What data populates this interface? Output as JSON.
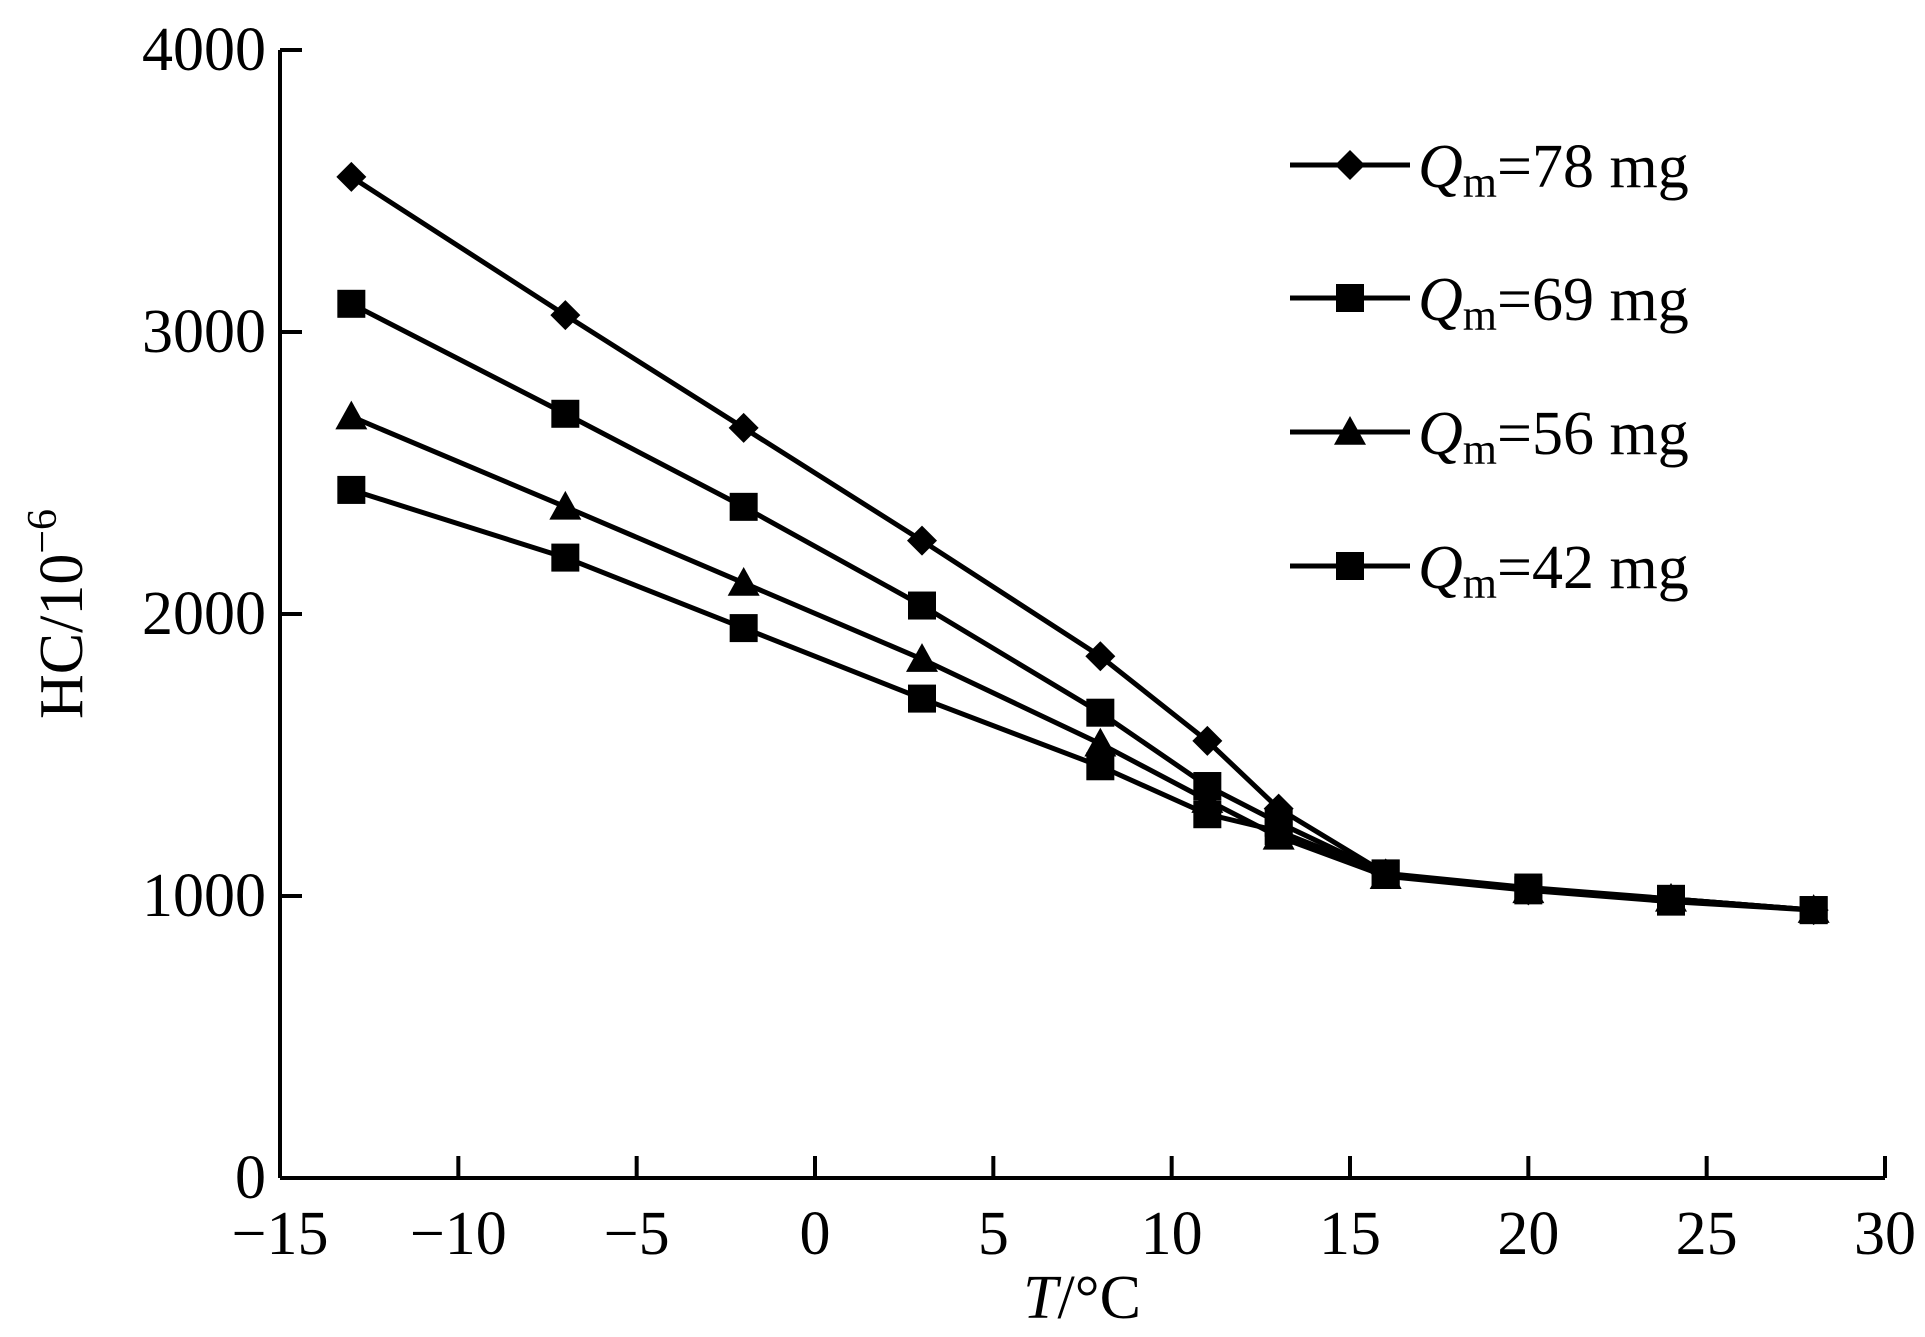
{
  "chart_data": {
    "type": "line",
    "xlabel_symbol": "T",
    "xlabel_unit": "/°C",
    "ylabel_base": "HC/10",
    "ylabel_exp": "−6",
    "xlim": [
      -15,
      30
    ],
    "ylim": [
      0,
      4000
    ],
    "x_ticks": [
      -15,
      -10,
      -5,
      0,
      5,
      10,
      15,
      20,
      25,
      30
    ],
    "x_tick_labels": [
      "−15",
      "−10",
      "−5",
      "0",
      "5",
      "10",
      "15",
      "20",
      "25",
      "30"
    ],
    "y_tick_labels": [
      {
        "value": 0,
        "label": "0"
      },
      {
        "value": 1000,
        "label": "1000"
      },
      {
        "value": 2000,
        "label": "2000"
      },
      {
        "value": 3000,
        "label": "3000"
      },
      {
        "value": 4000,
        "label": "4000"
      }
    ],
    "grid": false,
    "legend_position": "top-right",
    "x": [
      -13,
      -7,
      -2,
      3,
      8,
      11,
      13,
      16,
      20,
      24,
      28
    ],
    "series": [
      {
        "symbol": "Q",
        "subscript": "m",
        "suffix": "=78 mg",
        "marker": "diamond",
        "values": [
          3550,
          3060,
          2660,
          2260,
          1850,
          1550,
          1310,
          1080,
          1020,
          990,
          950
        ]
      },
      {
        "symbol": "Q",
        "subscript": "m",
        "suffix": "=69 mg",
        "marker": "square",
        "values": [
          3100,
          2710,
          2380,
          2030,
          1650,
          1390,
          1260,
          1080,
          1030,
          990,
          950
        ]
      },
      {
        "symbol": "Q",
        "subscript": "m",
        "suffix": "=56 mg",
        "marker": "triangle",
        "values": [
          2700,
          2380,
          2110,
          1840,
          1540,
          1340,
          1210,
          1070,
          1020,
          990,
          950
        ]
      },
      {
        "symbol": "Q",
        "subscript": "m",
        "suffix": "=42 mg",
        "marker": "square",
        "values": [
          2440,
          2200,
          1950,
          1700,
          1460,
          1290,
          1230,
          1080,
          1020,
          980,
          950
        ]
      }
    ]
  }
}
